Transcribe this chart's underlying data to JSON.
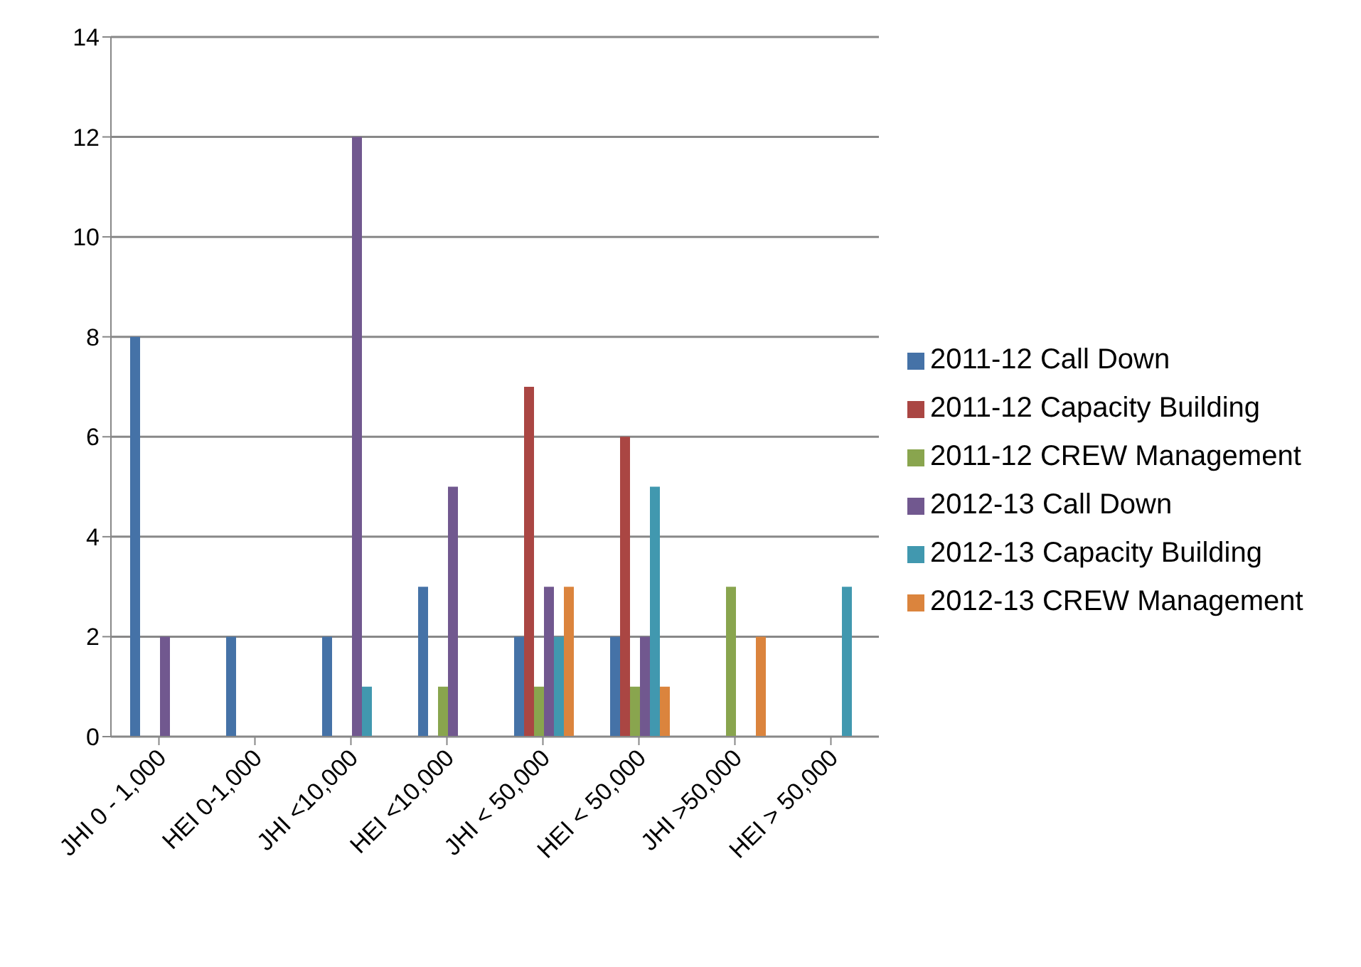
{
  "chart_data": {
    "type": "bar",
    "categories": [
      "JHI 0 - 1,000",
      "HEI 0-1,000",
      "JHI <10,000",
      "HEI <10,000",
      "JHI < 50,000",
      "HEI < 50,000",
      "JHI >50,000",
      "HEI > 50,000"
    ],
    "series": [
      {
        "name": "2011-12 Call Down",
        "color": "#4572a7",
        "values": [
          8,
          2,
          2,
          3,
          2,
          2,
          0,
          0
        ]
      },
      {
        "name": "2011-12 Capacity Building",
        "color": "#aa4643",
        "values": [
          0,
          0,
          0,
          0,
          7,
          6,
          0,
          0
        ]
      },
      {
        "name": "2011-12 CREW Management",
        "color": "#89a54e",
        "values": [
          0,
          0,
          0,
          1,
          1,
          1,
          3,
          0
        ]
      },
      {
        "name": "2012-13 Call Down",
        "color": "#71588f",
        "values": [
          2,
          0,
          12,
          5,
          3,
          2,
          0,
          0
        ]
      },
      {
        "name": "2012-13 Capacity Building",
        "color": "#4198af",
        "values": [
          0,
          0,
          1,
          0,
          2,
          5,
          0,
          3
        ]
      },
      {
        "name": "2012-13 CREW Management",
        "color": "#db843d",
        "values": [
          0,
          0,
          0,
          0,
          3,
          1,
          2,
          0
        ]
      }
    ],
    "ylim": [
      0,
      14
    ],
    "yticks": [
      0,
      2,
      4,
      6,
      8,
      10,
      12,
      14
    ],
    "grid": "y",
    "legend": "right"
  }
}
